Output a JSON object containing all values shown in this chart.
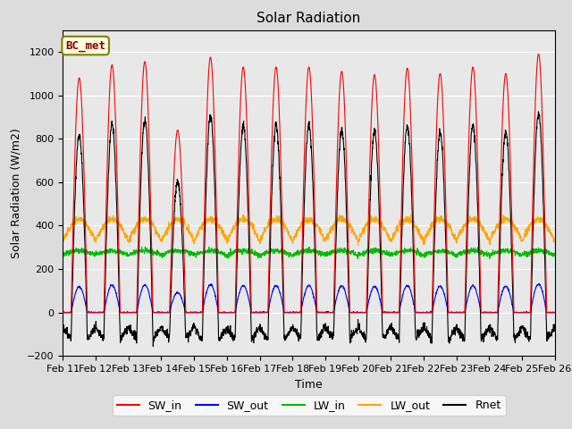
{
  "title": "Solar Radiation",
  "ylabel": "Solar Radiation (W/m2)",
  "xlabel": "Time",
  "ylim": [
    -200,
    1300
  ],
  "yticks": [
    -200,
    0,
    200,
    400,
    600,
    800,
    1000,
    1200
  ],
  "station_label": "BC_met",
  "xticklabels": [
    "Feb 11",
    "Feb 12",
    "Feb 13",
    "Feb 14",
    "Feb 15",
    "Feb 16",
    "Feb 17",
    "Feb 18",
    "Feb 19",
    "Feb 20",
    "Feb 21",
    "Feb 22",
    "Feb 23",
    "Feb 24",
    "Feb 25",
    "Feb 26"
  ],
  "colors": {
    "SW_in": "#FF0000",
    "SW_out": "#0000FF",
    "LW_in": "#00BB00",
    "LW_out": "#FFA500",
    "Rnet": "#000000"
  },
  "fig_bg": "#DCDCDC",
  "plot_bg": "#E8E8E8",
  "n_days": 15,
  "day_peaks_sw_in": [
    1080,
    1140,
    1155,
    840,
    1175,
    1130,
    1130,
    1130,
    1110,
    1095,
    1125,
    1100,
    1130,
    1100,
    1190
  ],
  "figsize": [
    6.4,
    4.8
  ],
  "dpi": 100
}
